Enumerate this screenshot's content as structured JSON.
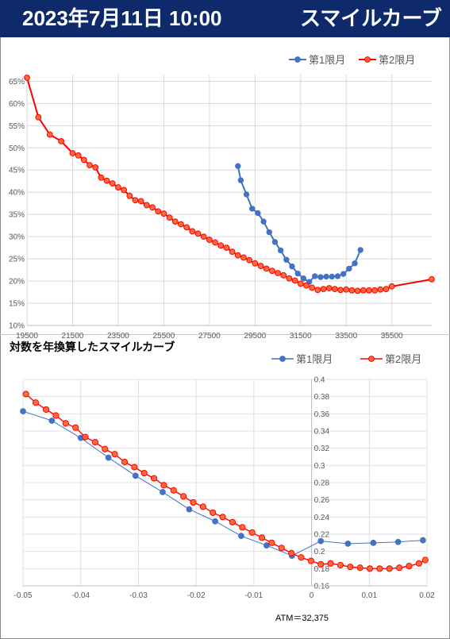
{
  "header": {
    "datetime": "2023年7月11日 10:00",
    "title": "スマイルカーブ"
  },
  "colors": {
    "series1": "#4472c4",
    "series2": "#ff0000",
    "series2_fill": "#ff6a3d",
    "header_bg": "#0e2a6b"
  },
  "chart_data": [
    {
      "type": "line",
      "title": "",
      "legend_position": "top-right",
      "grid": true,
      "x_tick_labels": [
        "19500",
        "21500",
        "23500",
        "25500",
        "27500",
        "29500",
        "31500",
        "33500",
        "35500"
      ],
      "y_tick_labels": [
        "10%",
        "15%",
        "20%",
        "25%",
        "30%",
        "35%",
        "40%",
        "45%",
        "50%",
        "55%",
        "60%",
        "65%"
      ],
      "xlim": [
        19500,
        37250
      ],
      "ylim": [
        10,
        66.5
      ],
      "series": [
        {
          "name": "第1限月",
          "x": [
            28750,
            28875,
            29125,
            29375,
            29625,
            29875,
            30125,
            30375,
            30625,
            30875,
            31125,
            31375,
            31625,
            31875,
            32125,
            32375,
            32625,
            32875,
            33125,
            33375,
            33625,
            33875,
            34125,
            34375
          ],
          "y": [
            45.9,
            42.7,
            39.5,
            36.3,
            35.3,
            33.4,
            31,
            28.8,
            26.9,
            24.8,
            23.3,
            21.7,
            20.6,
            19.8,
            21.1,
            20.9,
            21,
            21,
            21.1,
            21.6,
            22.8,
            24,
            27,
            null
          ]
        },
        {
          "name": "第2限月",
          "x": [
            19500,
            20000,
            20500,
            21000,
            21500,
            21750,
            22000,
            22250,
            22500,
            22750,
            23000,
            23250,
            23500,
            23750,
            24000,
            24250,
            24500,
            24750,
            25000,
            25250,
            25500,
            25750,
            26000,
            26250,
            26500,
            26750,
            27000,
            27250,
            27500,
            27750,
            28000,
            28250,
            28500,
            28750,
            29000,
            29250,
            29500,
            29750,
            30000,
            30250,
            30500,
            30750,
            31000,
            31250,
            31500,
            31750,
            32000,
            32250,
            32500,
            32750,
            33000,
            33250,
            33500,
            33750,
            34000,
            34250,
            34500,
            34750,
            35000,
            35250,
            35500,
            37250
          ],
          "y": [
            65.8,
            56.9,
            53,
            51.5,
            48.8,
            48.3,
            47.3,
            46.1,
            45.6,
            43.3,
            42.6,
            42,
            41.1,
            40.5,
            39.2,
            38.2,
            38,
            37.1,
            36.6,
            35.7,
            35.2,
            34.3,
            33.4,
            32.8,
            32.1,
            31.2,
            30.7,
            30,
            29.3,
            28.7,
            28,
            27.5,
            26.6,
            25.8,
            25.3,
            24.7,
            24,
            23.4,
            22.8,
            22.3,
            21.8,
            21.3,
            20.6,
            20.1,
            19.4,
            19,
            18.5,
            18,
            18.2,
            18.4,
            18.2,
            18,
            18.1,
            17.9,
            17.8,
            17.9,
            17.9,
            17.9,
            18.1,
            18.2,
            18.8,
            20.4
          ]
        }
      ]
    },
    {
      "type": "line",
      "title": "対数を年換算したスマイルカーブ",
      "legend_position": "top-right",
      "grid": true,
      "x_tick_labels": [
        "-0.05",
        "-0.04",
        "-0.03",
        "-0.02",
        "-0.01",
        "0",
        "0.01",
        "0.02"
      ],
      "y_tick_labels": [
        "0.16",
        "0.18",
        "0.2",
        "0.22",
        "0.24",
        "0.26",
        "0.28",
        "0.3",
        "0.32",
        "0.34",
        "0.36",
        "0.38",
        "0.4"
      ],
      "xlim": [
        -0.05,
        0.02
      ],
      "ylim": [
        0.16,
        0.4
      ],
      "annotation": "ATM＝32,375",
      "series": [
        {
          "name": "第1限月",
          "x": [
            -0.05,
            -0.045,
            -0.04,
            -0.0352,
            -0.0305,
            -0.0258,
            -0.0212,
            -0.0167,
            -0.0122,
            -0.0078,
            -0.0034,
            0.0016,
            0.0063,
            0.0107,
            0.015,
            0.0193
          ],
          "y": [
            0.363,
            0.352,
            0.332,
            0.309,
            0.288,
            0.269,
            0.249,
            0.235,
            0.218,
            0.207,
            0.195,
            0.212,
            0.209,
            0.21,
            0.211,
            0.213
          ]
        },
        {
          "name": "第2限月",
          "x": [
            -0.0495,
            -0.0478,
            -0.046,
            -0.0443,
            -0.0426,
            -0.0409,
            -0.0392,
            -0.0375,
            -0.0358,
            -0.0341,
            -0.0324,
            -0.0307,
            -0.029,
            -0.0273,
            -0.0256,
            -0.0239,
            -0.0222,
            -0.0205,
            -0.0188,
            -0.0171,
            -0.0154,
            -0.0137,
            -0.012,
            -0.0103,
            -0.0086,
            -0.0069,
            -0.0052,
            -0.0035,
            -0.0018,
            -0.0001,
            0.0016,
            0.0033,
            0.005,
            0.0067,
            0.0084,
            0.0101,
            0.0118,
            0.0135,
            0.0152,
            0.0169,
            0.0186,
            0.0197
          ],
          "y": [
            0.383,
            0.373,
            0.365,
            0.358,
            0.349,
            0.344,
            0.333,
            0.327,
            0.319,
            0.313,
            0.304,
            0.298,
            0.291,
            0.285,
            0.277,
            0.271,
            0.264,
            0.257,
            0.252,
            0.245,
            0.24,
            0.234,
            0.228,
            0.222,
            0.216,
            0.21,
            0.204,
            0.198,
            0.193,
            0.189,
            0.185,
            0.186,
            0.184,
            0.182,
            0.181,
            0.18,
            0.18,
            0.18,
            0.181,
            0.183,
            0.186,
            0.19
          ]
        }
      ]
    }
  ]
}
